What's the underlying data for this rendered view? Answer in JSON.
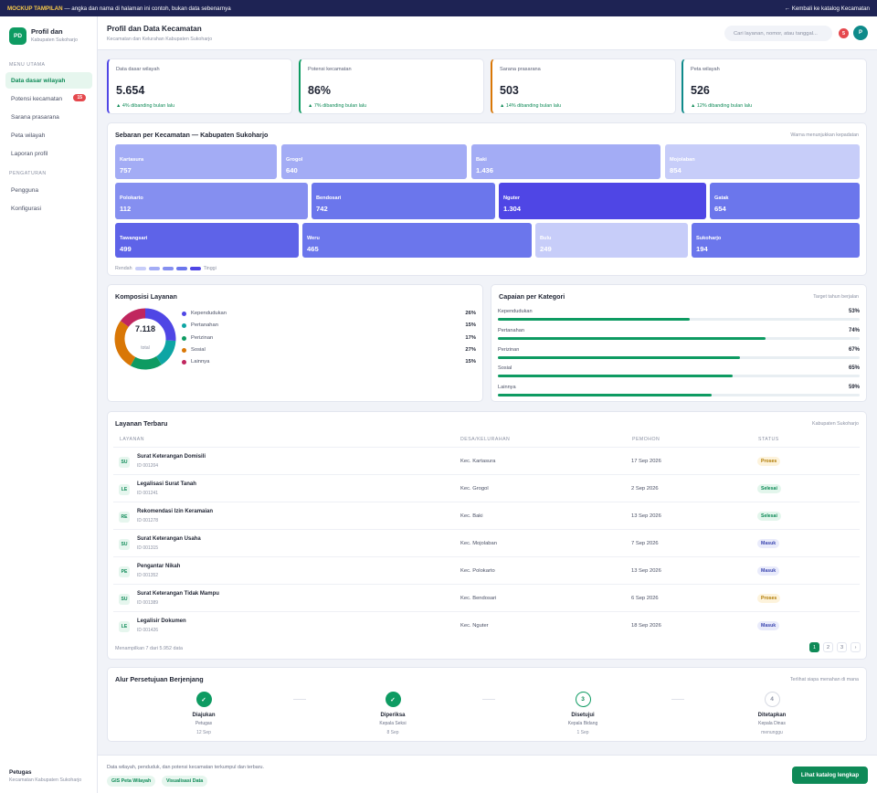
{
  "banner": {
    "tag": "MOCKUP TAMPILAN",
    "text": " — angka dan nama di halaman ini contoh, bukan data sebenarnya",
    "back": "← Kembali ke katalog Kecamatan"
  },
  "sidebar": {
    "logo": "PD",
    "title": "Profil dan",
    "subtitle": "Kabupaten Sukoharjo",
    "section_main": "MENU UTAMA",
    "section_settings": "PENGATURAN",
    "items": [
      {
        "label": "Data dasar wilayah"
      },
      {
        "label": "Potensi kecamatan",
        "badge": "15"
      },
      {
        "label": "Sarana prasarana"
      },
      {
        "label": "Peta wilayah"
      },
      {
        "label": "Laporan profil"
      }
    ],
    "settings": [
      {
        "label": "Pengguna"
      },
      {
        "label": "Konfigurasi"
      }
    ],
    "user_name": "Petugas",
    "user_role": "Kecamatan Kabupaten Sukoharjo"
  },
  "header": {
    "title": "Profil dan Data Kecamatan",
    "subtitle": "Kecamatan dan Kelurahan Kabupaten Sukoharjo",
    "search_placeholder": "Cari layanan, nomor, atau tanggal...",
    "notif": "5",
    "avatar": "P"
  },
  "stats": [
    {
      "label": "Data dasar wilayah",
      "value": "5.654",
      "delta": "▲ 4% dibanding bulan lalu",
      "color": "#4f46e5"
    },
    {
      "label": "Potensi kecamatan",
      "value": "86%",
      "delta": "▲ 7% dibanding bulan lalu",
      "color": "#0e9b62"
    },
    {
      "label": "Sarana prasarana",
      "value": "503",
      "delta": "▲ 14% dibanding bulan lalu",
      "color": "#d97706"
    },
    {
      "label": "Peta wilayah",
      "value": "526",
      "delta": "▲ 12% dibanding bulan lalu",
      "color": "#0e8a8a"
    }
  ],
  "treemap": {
    "title": "Sebaran per Kecamatan — Kabupaten Sukoharjo",
    "note": "Warna menunjukkan kepadatan",
    "low": "Rendah",
    "high": "Tinggi",
    "tiles": [
      {
        "name": "Kartasura",
        "value": "757",
        "color": "#a3acf5"
      },
      {
        "name": "Grogol",
        "value": "640",
        "color": "#a3acf5"
      },
      {
        "name": "Baki",
        "value": "1.436",
        "color": "#a3acf5"
      },
      {
        "name": "Mojolaban",
        "value": "854",
        "color": "#c7cdf9"
      },
      {
        "name": "Polokarto",
        "value": "112",
        "color": "#858ff0"
      },
      {
        "name": "Bendosari",
        "value": "742",
        "color": "#6b76ec"
      },
      {
        "name": "Nguter",
        "value": "1.304",
        "color": "#4f46e5"
      },
      {
        "name": "Gatak",
        "value": "654",
        "color": "#6b76ec"
      },
      {
        "name": "Tawangsari",
        "value": "499",
        "color": "#5e63e8"
      },
      {
        "name": "Weru",
        "value": "465",
        "color": "#6b76ec"
      },
      {
        "name": "Bulu",
        "value": "249",
        "color": "#c7cdf9"
      },
      {
        "name": "Sukoharjo",
        "value": "194",
        "color": "#6b76ec"
      }
    ],
    "scale": [
      "#c7cdf9",
      "#a3acf5",
      "#858ff0",
      "#6b76ec",
      "#4f46e5"
    ]
  },
  "composition": {
    "title": "Komposisi Layanan",
    "total": "7.118",
    "total_label": "total",
    "items": [
      {
        "name": "Kependudukan",
        "pct": "26%",
        "value": 26,
        "color": "#4f46e5"
      },
      {
        "name": "Pertanahan",
        "pct": "15%",
        "value": 15,
        "color": "#0ea5a4"
      },
      {
        "name": "Perizinan",
        "pct": "17%",
        "value": 17,
        "color": "#0e9b62"
      },
      {
        "name": "Sosial",
        "pct": "27%",
        "value": 27,
        "color": "#d97706"
      },
      {
        "name": "Lainnya",
        "pct": "15%",
        "value": 15,
        "color": "#c0265e"
      }
    ]
  },
  "achievement": {
    "title": "Capaian per Kategori",
    "note": "Target tahun berjalan",
    "items": [
      {
        "name": "Kependudukan",
        "pct": "53%",
        "value": 53
      },
      {
        "name": "Pertanahan",
        "pct": "74%",
        "value": 74
      },
      {
        "name": "Perizinan",
        "pct": "67%",
        "value": 67
      },
      {
        "name": "Sosial",
        "pct": "65%",
        "value": 65
      },
      {
        "name": "Lainnya",
        "pct": "59%",
        "value": 59
      }
    ]
  },
  "services": {
    "title": "Layanan Terbaru",
    "note": "Kabupaten Sukoharjo",
    "columns": [
      "LAYANAN",
      "DESA/KELURAHAN",
      "PEMOHON",
      "STATUS"
    ],
    "rows": [
      {
        "ini": "SU",
        "title": "Surat Keterangan Domisili",
        "id": "ID 001204",
        "desa": "Kec. Kartasura",
        "date": "17 Sep 2026",
        "status": "Proses",
        "cls": "proses"
      },
      {
        "ini": "LE",
        "title": "Legalisasi Surat Tanah",
        "id": "ID 001241",
        "desa": "Kec. Grogol",
        "date": "2 Sep 2026",
        "status": "Selesai",
        "cls": "selesai"
      },
      {
        "ini": "RE",
        "title": "Rekomendasi Izin Keramaian",
        "id": "ID 001278",
        "desa": "Kec. Baki",
        "date": "13 Sep 2026",
        "status": "Selesai",
        "cls": "selesai"
      },
      {
        "ini": "SU",
        "title": "Surat Keterangan Usaha",
        "id": "ID 001315",
        "desa": "Kec. Mojolaban",
        "date": "7 Sep 2026",
        "status": "Masuk",
        "cls": "masuk"
      },
      {
        "ini": "PE",
        "title": "Pengantar Nikah",
        "id": "ID 001352",
        "desa": "Kec. Polokarto",
        "date": "13 Sep 2026",
        "status": "Masuk",
        "cls": "masuk"
      },
      {
        "ini": "SU",
        "title": "Surat Keterangan Tidak Mampu",
        "id": "ID 001389",
        "desa": "Kec. Bendosari",
        "date": "6 Sep 2026",
        "status": "Proses",
        "cls": "proses"
      },
      {
        "ini": "LE",
        "title": "Legalisir Dokumen",
        "id": "ID 001426",
        "desa": "Kec. Nguter",
        "date": "18 Sep 2026",
        "status": "Masuk",
        "cls": "masuk"
      }
    ],
    "summary": "Menampilkan 7 dari 5.952 data",
    "pages": [
      "1",
      "2",
      "3",
      "›"
    ]
  },
  "approval": {
    "title": "Alur Persetujuan Berjenjang",
    "note": "Terlihat siapa menahan di mana",
    "steps": [
      {
        "mark": "✓",
        "name": "Diajukan",
        "role": "Petugas",
        "date": "12 Sep",
        "state": "done"
      },
      {
        "mark": "✓",
        "name": "Diperiksa",
        "role": "Kepala Seksi",
        "date": "8 Sep",
        "state": "done"
      },
      {
        "mark": "3",
        "name": "Disetujui",
        "role": "Kepala Bidang",
        "date": "1 Sep",
        "state": "cur"
      },
      {
        "mark": "4",
        "name": "Ditetapkan",
        "role": "Kepala Dinas",
        "date": "menunggu",
        "state": "todo"
      }
    ]
  },
  "footer": {
    "text": "Data wilayah, penduduk, dan potensi kecamatan terkumpul dan terbaru.",
    "chips": [
      "GIS Peta Wilayah",
      "Visualisasi Data"
    ],
    "cta": "Lihat katalog lengkap"
  }
}
